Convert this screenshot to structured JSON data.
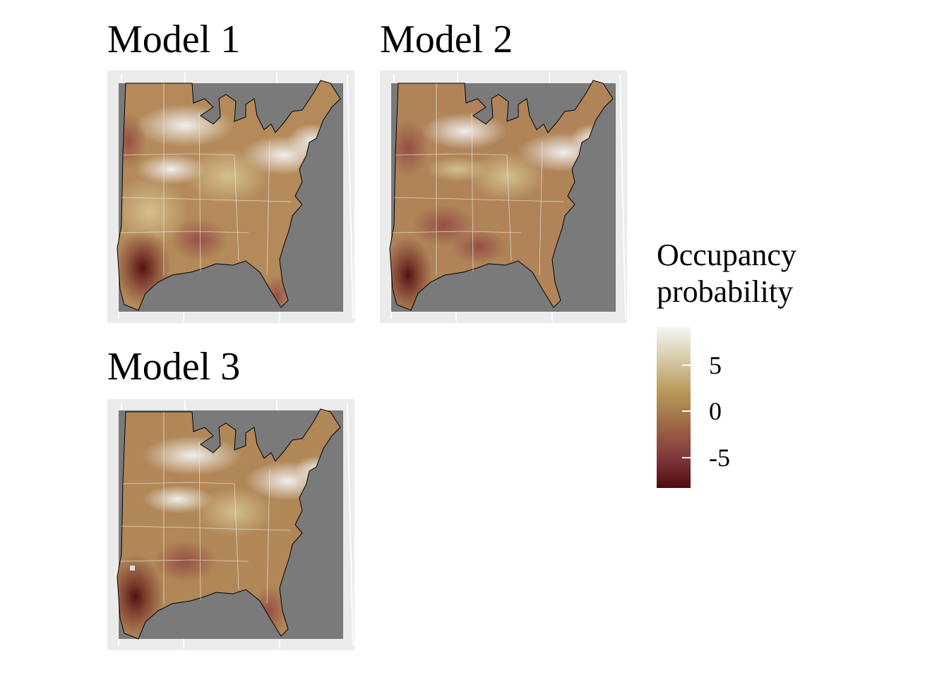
{
  "panels": [
    {
      "title": "Model 1"
    },
    {
      "title": "Model 2"
    },
    {
      "title": "Model 3"
    }
  ],
  "legend": {
    "title_line1": "Occupancy",
    "title_line2": "probability",
    "ticks": [
      "5",
      "0",
      "-5"
    ]
  },
  "colors": {
    "high": "#f4f4f4",
    "mid": "#b99a5a",
    "low": "#4e0b0d",
    "ocean": "#7a7a7a",
    "frame": "#ebebeb"
  }
}
